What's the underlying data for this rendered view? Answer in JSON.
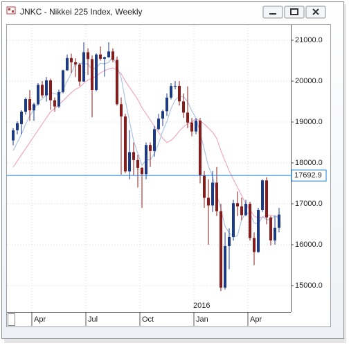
{
  "chart_data": {
    "type": "candlestick",
    "title": "JNKC - Nikkei 225 Index, Weekly",
    "categories": [
      null,
      null,
      null,
      null,
      null,
      "Apr",
      null,
      null,
      null,
      null,
      null,
      null,
      null,
      null,
      null,
      null,
      null,
      null,
      "Jul",
      null,
      null,
      null,
      null,
      null,
      null,
      null,
      null,
      null,
      null,
      null,
      null,
      "Oct",
      null,
      null,
      null,
      null,
      null,
      null,
      null,
      null,
      null,
      null,
      null,
      null,
      "Jan",
      null,
      null,
      null,
      null,
      null,
      null,
      null,
      null,
      null,
      null,
      null,
      null,
      "Apr",
      null,
      null,
      null,
      null,
      null,
      null,
      null
    ],
    "year_label": {
      "text": "2016",
      "index": 44
    },
    "open": [
      18550,
      18800,
      18950,
      19250,
      19560,
      19285,
      19435,
      19908,
      19652,
      20020,
      19532,
      19380,
      19733,
      20264,
      20563,
      20461,
      20407,
      19990,
      20706,
      20539,
      19780,
      20650,
      20545,
      20585,
      20725,
      20519,
      19436,
      19136,
      17792,
      18264,
      18070,
      17880,
      17725,
      18438,
      18291,
      18825,
      19083,
      19265,
      19597,
      19879,
      19883,
      19504,
      19230,
      18986,
      18769,
      19033,
      17697,
      17147,
      16958,
      17518,
      16819,
      14952,
      15967,
      16188,
      17014,
      16938,
      16724,
      17002,
      16164,
      15821,
      16848,
      17572,
      16666,
      16106,
      16412
    ],
    "high": [
      18850,
      19020,
      19290,
      19600,
      19780,
      19470,
      19950,
      20000,
      20100,
      20060,
      19600,
      19790,
      20280,
      20650,
      20670,
      20560,
      20440,
      20950,
      20800,
      20630,
      20680,
      20850,
      20600,
      20950,
      20800,
      20600,
      19600,
      19200,
      18800,
      18500,
      18200,
      17900,
      18500,
      18500,
      18900,
      19200,
      19300,
      19700,
      19950,
      20000,
      20000,
      19700,
      19870,
      19100,
      19100,
      19100,
      17800,
      17600,
      17800,
      17900,
      17000,
      16300,
      16400,
      17100,
      17300,
      17150,
      17100,
      17050,
      16300,
      16900,
      17600,
      17650,
      16700,
      16700,
      16900
    ],
    "low": [
      18430,
      18700,
      18700,
      19180,
      19030,
      19030,
      19400,
      19600,
      19500,
      19300,
      19250,
      19340,
      19700,
      20250,
      20200,
      20100,
      19880,
      19980,
      20150,
      19115,
      19750,
      20500,
      20110,
      20570,
      20460,
      19400,
      17714,
      17750,
      17600,
      17700,
      17400,
      16901,
      17600,
      17900,
      18150,
      18800,
      18900,
      19150,
      19550,
      19800,
      19400,
      19100,
      18850,
      18650,
      18700,
      17500,
      16900,
      16000,
      16800,
      16700,
      14865,
      14900,
      15400,
      16100,
      16700,
      16600,
      16700,
      16100,
      15500,
      15800,
      16800,
      16500,
      15980,
      16000,
      16300
    ],
    "close": [
      18798,
      18971,
      19254,
      19560,
      19285,
      19435,
      19908,
      19652,
      20020,
      19532,
      19380,
      19733,
      20264,
      20563,
      20461,
      20407,
      19990,
      20706,
      20539,
      19780,
      20650,
      20545,
      20585,
      20725,
      20519,
      19436,
      19136,
      17792,
      18264,
      18070,
      17880,
      17725,
      18438,
      18291,
      18825,
      19083,
      19265,
      19597,
      19879,
      19883,
      19504,
      19230,
      18986,
      18769,
      19033,
      17697,
      17147,
      16958,
      17518,
      16819,
      14952,
      15967,
      16188,
      17014,
      16938,
      16724,
      17002,
      16164,
      15821,
      16848,
      17572,
      16666,
      16106,
      16412,
      16736
    ],
    "up_color": "#1c3a8a",
    "down_color": "#8b1a1a",
    "lines": [
      {
        "color": "#f0a8c0",
        "values": [
          17900,
          18050,
          18200,
          18350,
          18500,
          18650,
          18800,
          18950,
          19100,
          19250,
          19330,
          19420,
          19520,
          19620,
          19720,
          19800,
          19850,
          19950,
          20030,
          20070,
          20120,
          20200,
          20260,
          20300,
          20320,
          20270,
          20180,
          20000,
          19850,
          19700,
          19550,
          19350,
          19200,
          19050,
          18900,
          18750,
          18600,
          18500,
          18550,
          18650,
          18780,
          18880,
          18960,
          19000,
          19080,
          19030,
          18950,
          18850,
          18750,
          18600,
          18300,
          18050,
          17800,
          17600,
          17400,
          17200,
          17000,
          16850,
          16700,
          16650,
          16680,
          16720,
          16720,
          16700,
          16680
        ]
      },
      {
        "color": "#a9c4e4",
        "values": [
          18300,
          18500,
          18700,
          18950,
          19150,
          19300,
          19490,
          19570,
          19660,
          19710,
          19700,
          19660,
          19790,
          20000,
          20190,
          20440,
          20440,
          20430,
          20420,
          20280,
          20330,
          20440,
          20420,
          20460,
          20600,
          20360,
          20080,
          19520,
          19030,
          18540,
          18230,
          17940,
          18070,
          18080,
          18230,
          18470,
          18780,
          19010,
          19330,
          19540,
          19630,
          19620,
          19500,
          19270,
          19100,
          18740,
          18330,
          17920,
          17670,
          17230,
          16880,
          16450,
          16290,
          16190,
          16220,
          16620,
          16770,
          16770,
          16530,
          16510,
          16680,
          16620,
          16600,
          16720,
          16620
        ]
      }
    ],
    "hline": {
      "value": 17692.9,
      "color": "#1a7fd6"
    },
    "ylim": [
      14356,
      21373
    ],
    "yticks": [
      {
        "value": 15000,
        "label": "15000.0"
      },
      {
        "value": 16000,
        "label": "16000.0"
      },
      {
        "value": 17000,
        "label": "17000.0"
      },
      {
        "value": 18000,
        "label": "18000.0"
      },
      {
        "value": 19000,
        "label": "19000.0"
      },
      {
        "value": 20000,
        "label": "20000.0"
      },
      {
        "value": 21000,
        "label": "21000.0"
      }
    ],
    "grid": true
  }
}
